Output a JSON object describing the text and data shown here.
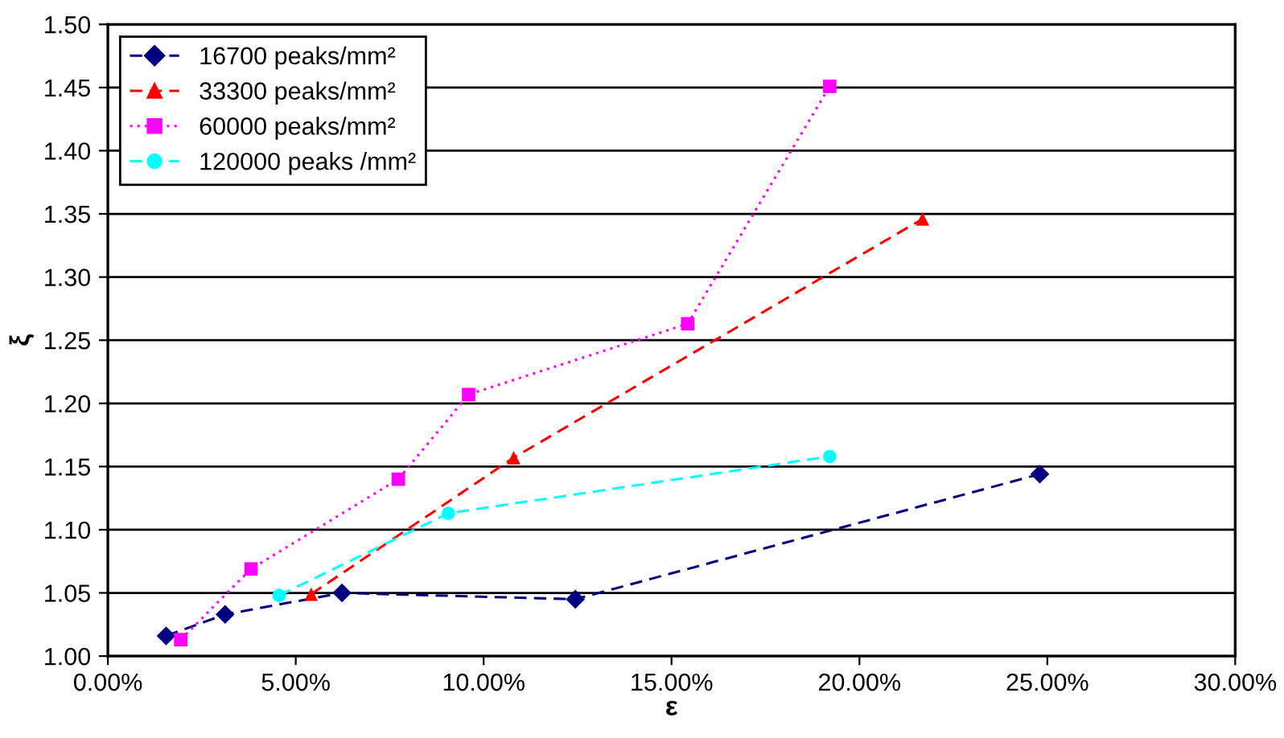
{
  "chart_data": {
    "type": "line",
    "xlabel": "ε",
    "ylabel": "ξ",
    "xlim": [
      0,
      30
    ],
    "ylim": [
      1.0,
      1.5
    ],
    "xticks": [
      {
        "value": 0,
        "label": "0.00%"
      },
      {
        "value": 5,
        "label": "5.00%"
      },
      {
        "value": 10,
        "label": "10.00%"
      },
      {
        "value": 15,
        "label": "15.00%"
      },
      {
        "value": 20,
        "label": "20.00%"
      },
      {
        "value": 25,
        "label": "25.00%"
      },
      {
        "value": 30,
        "label": "30.00%"
      }
    ],
    "yticks": [
      {
        "value": 1.0,
        "label": "1.00"
      },
      {
        "value": 1.05,
        "label": "1.05"
      },
      {
        "value": 1.1,
        "label": "1.10"
      },
      {
        "value": 1.15,
        "label": "1.15"
      },
      {
        "value": 1.2,
        "label": "1.20"
      },
      {
        "value": 1.25,
        "label": "1.25"
      },
      {
        "value": 1.3,
        "label": "1.30"
      },
      {
        "value": 1.35,
        "label": "1.35"
      },
      {
        "value": 1.4,
        "label": "1.40"
      },
      {
        "value": 1.45,
        "label": "1.45"
      },
      {
        "value": 1.5,
        "label": "1.50"
      }
    ],
    "grid": "y",
    "legend": "top left",
    "series": [
      {
        "name": "16700 peaks/mm²",
        "color": "#000080",
        "marker": "diamond",
        "line_style": "dashed",
        "x": [
          1.55,
          3.12,
          6.23,
          12.44,
          24.8
        ],
        "values": [
          1.016,
          1.033,
          1.05,
          1.045,
          1.144
        ]
      },
      {
        "name": "33300 peaks/mm²",
        "color": "#ff0000",
        "marker": "triangle",
        "line_style": "dashed",
        "x": [
          5.41,
          10.8,
          21.68
        ],
        "values": [
          1.049,
          1.157,
          1.346
        ]
      },
      {
        "name": "60000 peaks/mm²",
        "color": "#ff00ff",
        "marker": "square",
        "line_style": "dotted",
        "x": [
          1.94,
          3.81,
          7.73,
          9.6,
          15.43,
          19.21
        ],
        "values": [
          1.013,
          1.069,
          1.14,
          1.207,
          1.263,
          1.451
        ]
      },
      {
        "name": "120000 peaks /mm²",
        "color": "#00ffff",
        "marker": "circle",
        "line_style": "dashed",
        "x": [
          4.56,
          9.06,
          19.21
        ],
        "values": [
          1.048,
          1.113,
          1.158
        ]
      }
    ]
  }
}
